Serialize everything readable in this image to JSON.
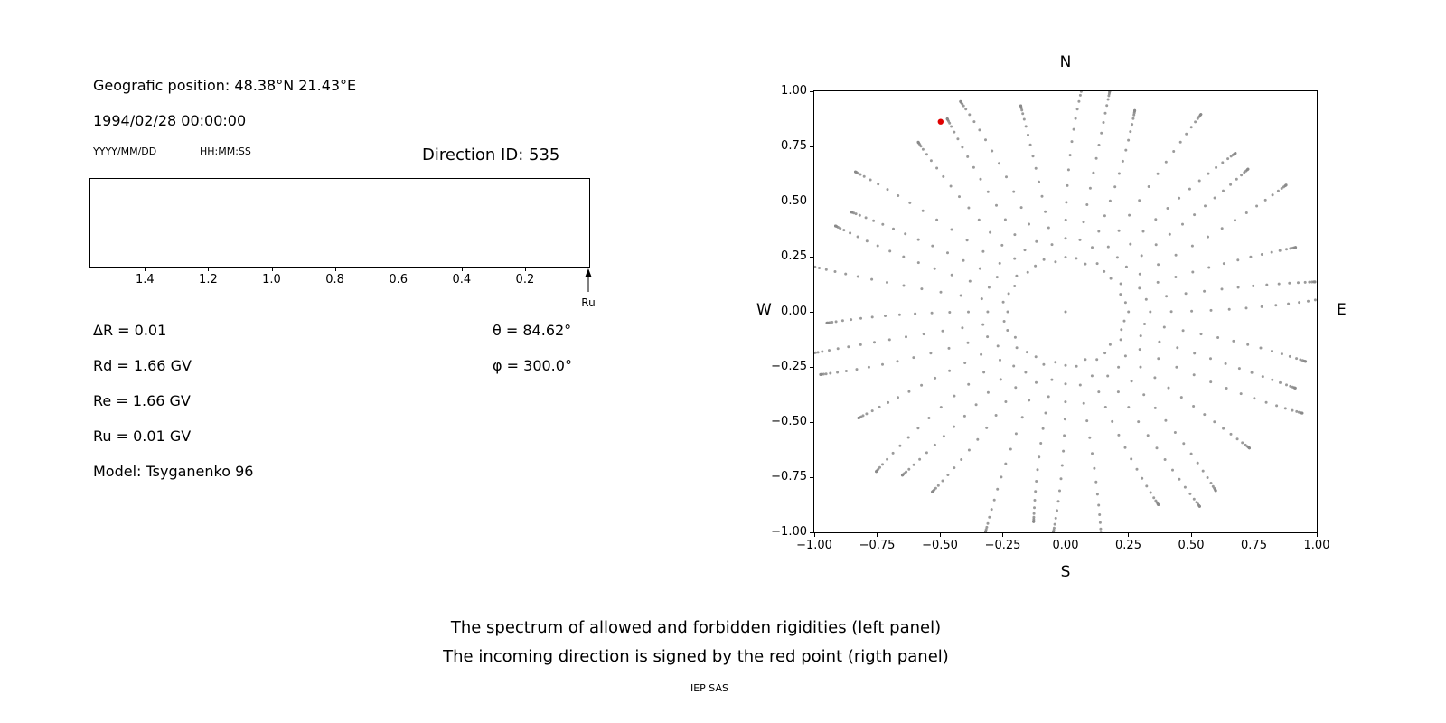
{
  "left_panel": {
    "geo_position": "Geografic position: 48.38°N 21.43°E",
    "datetime": "1994/02/28 00:00:00",
    "date_format_label": "YYYY/MM/DD",
    "time_format_label": "HH:MM:SS",
    "direction_id_label": "Direction ID: 535",
    "params": [
      "ΔR = 0.01",
      "Rd = 1.66 GV",
      "Re = 1.66 GV",
      "Ru = 0.01 GV",
      "Model: Tsyganenko 96"
    ],
    "theta_label": "θ = 84.62°",
    "phi_label": "φ = 300.0°",
    "arrow_label": "Ru"
  },
  "caption": {
    "line1": "The spectrum of allowed and forbidden rigidities (left panel)",
    "line2": "The incoming direction is signed by the red point (rigth panel)",
    "credit": "IEP SAS"
  },
  "chart_data": [
    {
      "id": "rigidity-spectrum-panel",
      "type": "line",
      "title": "",
      "xlabel": "",
      "ylabel": "",
      "x_ticks": [
        "1.4",
        "1.2",
        "1.0",
        "0.8",
        "0.6",
        "0.4",
        "0.2"
      ],
      "x_tick_values": [
        1.4,
        1.2,
        1.0,
        0.8,
        0.6,
        0.4,
        0.2
      ],
      "x_range": [
        1.575,
        0.0
      ],
      "x_axis_reversed": true,
      "series": [],
      "annotations": [
        {
          "type": "arrow-up",
          "label": "Ru",
          "x": 0.01
        }
      ],
      "note": "Panel area is empty (no spectrum drawn); an upward arrow below the axis right end marks Ru = 0.01 GV"
    },
    {
      "id": "incoming-direction-panel",
      "type": "scatter",
      "x_range": [
        -1.0,
        1.0
      ],
      "y_range": [
        -1.0,
        1.0
      ],
      "x_ticks": [
        "−1.00",
        "−0.75",
        "−0.50",
        "−0.25",
        "0.00",
        "0.25",
        "0.50",
        "0.75",
        "1.00"
      ],
      "x_tick_values": [
        -1.0,
        -0.75,
        -0.5,
        -0.25,
        0.0,
        0.25,
        0.5,
        0.75,
        1.0
      ],
      "y_ticks": [
        "1.00",
        "0.75",
        "0.50",
        "0.25",
        "0.00",
        "−0.25",
        "−0.50",
        "−0.75",
        "−1.00"
      ],
      "y_tick_values": [
        1.0,
        0.75,
        0.5,
        0.25,
        0.0,
        -0.25,
        -0.5,
        -0.75,
        -1.0
      ],
      "compass_labels": {
        "top": "N",
        "bottom": "S",
        "left": "W",
        "right": "E"
      },
      "dot_color": "#8a8a8a",
      "center_dot": {
        "x": 0.0,
        "y": 0.0
      },
      "spokes": {
        "count": 36,
        "azimuth_step_deg": 10,
        "zenith_deg": [
          14,
          19,
          24,
          29,
          34,
          39,
          44,
          49,
          54,
          59,
          64,
          69,
          74,
          78,
          81,
          84,
          86,
          88,
          89,
          90
        ],
        "radius_rule": "sin(zenith_deg)"
      },
      "red_point": {
        "x": -0.497,
        "y": 0.862,
        "color": "#e00000"
      }
    }
  ]
}
